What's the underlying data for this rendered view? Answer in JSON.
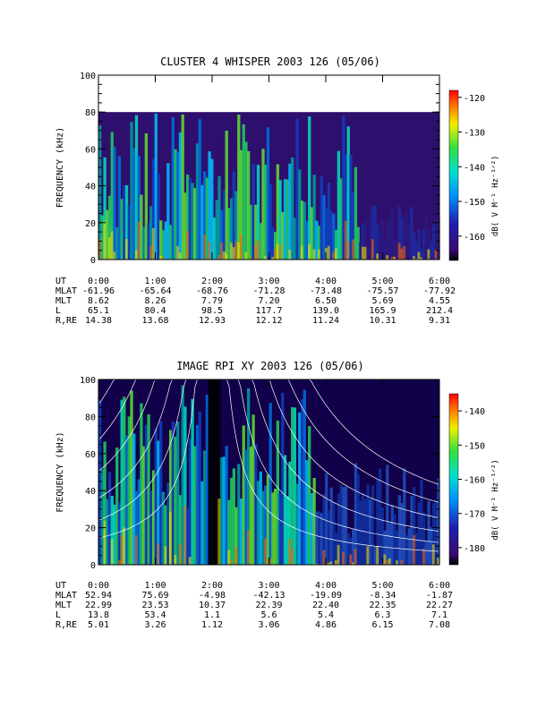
{
  "chart_data": [
    {
      "type": "heatmap",
      "title": "CLUSTER 4 WHISPER 2003 126 (05/06)",
      "xlabel": "",
      "ylabel": "FREQUENCY (kHz)",
      "x_ticks": [
        "0:00",
        "1:00",
        "2:00",
        "3:00",
        "4:00",
        "5:00",
        "6:00"
      ],
      "xlim_hours": [
        0,
        6
      ],
      "y_ticks": [
        "0",
        "20",
        "40",
        "60",
        "80",
        "100"
      ],
      "ylim": [
        0,
        100
      ],
      "data_top_khz": 80,
      "colorbar": {
        "label": "dB( V M⁻¹ Hz⁻¹ᐟ²)",
        "ticks": [
          "-120",
          "-130",
          "-140",
          "-150",
          "-160"
        ],
        "range": [
          -167,
          -118
        ]
      },
      "colors": {
        "low": "#2b0a5e",
        "mid": "#00d8c0",
        "high": "#ff0000"
      },
      "ephemeris": [
        {
          "label": "UT",
          "values": [
            "0:00",
            "1:00",
            "2:00",
            "3:00",
            "4:00",
            "5:00",
            "6:00"
          ]
        },
        {
          "label": "MLAT",
          "values": [
            "-61.96",
            "-65.64",
            "-68.76",
            "-71.28",
            "-73.48",
            "-75.57",
            "-77.92"
          ]
        },
        {
          "label": "MLT",
          "values": [
            "8.62",
            "8.26",
            "7.79",
            "7.20",
            "6.50",
            "5.69",
            "4.55"
          ]
        },
        {
          "label": "L",
          "values": [
            "65.1",
            "80.4",
            "98.5",
            "117.7",
            "139.0",
            "165.9",
            "212.4"
          ]
        },
        {
          "label": "R,RE",
          "values": [
            "14.38",
            "13.68",
            "12.93",
            "12.12",
            "11.24",
            "10.31",
            "9.31"
          ]
        }
      ]
    },
    {
      "type": "heatmap",
      "title": "IMAGE RPI XY 2003 126 (05/06)",
      "xlabel": "",
      "ylabel": "FREQUENCY (kHz)",
      "x_ticks": [
        "0:00",
        "1:00",
        "2:00",
        "3:00",
        "4:00",
        "5:00",
        "6:00"
      ],
      "xlim_hours": [
        0,
        6
      ],
      "y_ticks": [
        "0",
        "20",
        "40",
        "60",
        "80",
        "100"
      ],
      "ylim": [
        0,
        100
      ],
      "colorbar": {
        "label": "dB( V M⁻¹ Hz⁻¹ᐟ²)",
        "ticks": [
          "-140",
          "-150",
          "-160",
          "-170",
          "-180"
        ],
        "range": [
          -185,
          -135
        ]
      },
      "colors": {
        "low": "#1a0030",
        "mid": "#00c8c8",
        "high": "#ff0000"
      },
      "ephemeris": [
        {
          "label": "UT",
          "values": [
            "0:00",
            "1:00",
            "2:00",
            "3:00",
            "4:00",
            "5:00",
            "6:00"
          ]
        },
        {
          "label": "MLAT",
          "values": [
            "52.94",
            "75.69",
            "-4.98",
            "-42.13",
            "-19.09",
            "-8.34",
            "-1.87"
          ]
        },
        {
          "label": "MLT",
          "values": [
            "22.99",
            "23.53",
            "10.37",
            "22.39",
            "22.40",
            "22.35",
            "22.27"
          ]
        },
        {
          "label": "L",
          "values": [
            "13.8",
            "53.4",
            "1.1",
            "5.6",
            "5.4",
            "6.3",
            "7.1"
          ]
        },
        {
          "label": "R,RE",
          "values": [
            "5.01",
            "3.26",
            "1.12",
            "3.06",
            "4.86",
            "6.15",
            "7.08"
          ]
        }
      ]
    }
  ]
}
